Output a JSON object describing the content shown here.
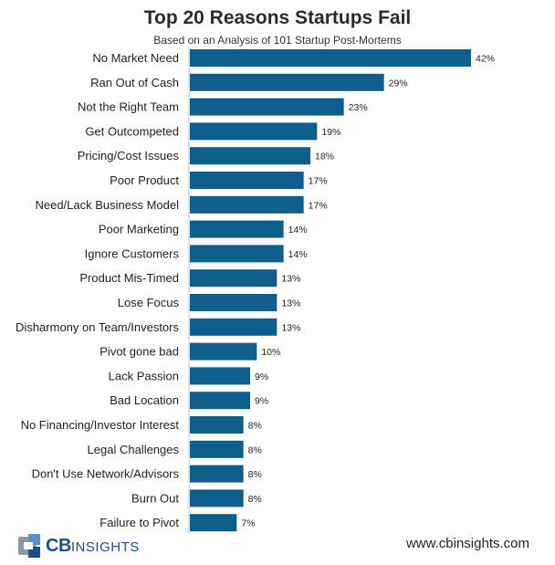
{
  "chart_data": {
    "type": "bar",
    "orientation": "horizontal",
    "title": "Top 20 Reasons Startups Fail",
    "subtitle": "Based on an Analysis of 101 Startup Post-Mortems",
    "categories": [
      "No Market Need",
      "Ran Out of Cash",
      "Not the Right Team",
      "Get Outcompeted",
      "Pricing/Cost Issues",
      "Poor Product",
      "Need/Lack Business Model",
      "Poor Marketing",
      "Ignore Customers",
      "Product Mis-Timed",
      "Lose Focus",
      "Disharmony on Team/Investors",
      "Pivot gone bad",
      "Lack Passion",
      "Bad Location",
      "No Financing/Investor Interest",
      "Legal Challenges",
      "Don't Use Network/Advisors",
      "Burn Out",
      "Failure to Pivot"
    ],
    "values": [
      42,
      29,
      23,
      19,
      18,
      17,
      17,
      14,
      14,
      13,
      13,
      13,
      10,
      9,
      9,
      8,
      8,
      8,
      8,
      7
    ],
    "value_labels": [
      "42%",
      "29%",
      "23%",
      "19%",
      "18%",
      "17%",
      "17%",
      "14%",
      "14%",
      "13%",
      "13%",
      "13%",
      "10%",
      "9%",
      "9%",
      "8%",
      "8%",
      "8%",
      "8%",
      "7%"
    ],
    "unit": "%",
    "bar_color": "#0f5f8c",
    "xlim": [
      0,
      42
    ],
    "grid": false,
    "legend": "none"
  },
  "footer": {
    "logo_bold": "CB",
    "logo_light": "INSIGHTS",
    "website": "www.cbinsights.com"
  },
  "colors": {
    "brand_blue": "#1c4f86",
    "brand_light_blue": "#5b8fc7",
    "brand_gray": "#8f979f"
  }
}
